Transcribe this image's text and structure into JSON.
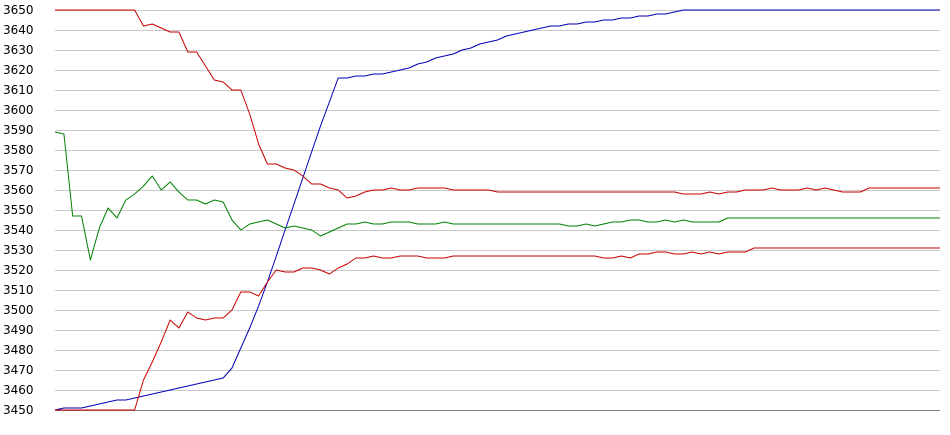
{
  "chart_data": {
    "type": "line",
    "title": "",
    "xlabel": "",
    "ylabel": "",
    "ylim": [
      3450,
      3650
    ],
    "yticks": [
      3450,
      3460,
      3470,
      3480,
      3490,
      3500,
      3510,
      3520,
      3530,
      3540,
      3550,
      3560,
      3570,
      3580,
      3590,
      3600,
      3610,
      3620,
      3630,
      3640,
      3650
    ],
    "xlim": [
      0,
      100
    ],
    "grid": true,
    "legend": "none",
    "series": [
      {
        "color": "#0000b4",
        "x": [
          0,
          1,
          2,
          3,
          4,
          5,
          6,
          7,
          8,
          9,
          10,
          11,
          12,
          13,
          14,
          15,
          16,
          17,
          18,
          19,
          20,
          21,
          22,
          23,
          24,
          25,
          26,
          27,
          28,
          29,
          30,
          31,
          32,
          33,
          34,
          35,
          36,
          37,
          38,
          39,
          40,
          41,
          42,
          43,
          44,
          45,
          46,
          47,
          48,
          49,
          50,
          51,
          52,
          53,
          54,
          55,
          56,
          57,
          58,
          59,
          60,
          61,
          62,
          63,
          64,
          65,
          66,
          67,
          68,
          69,
          70,
          71,
          72,
          73,
          74,
          75,
          76,
          77,
          78,
          79,
          80,
          81,
          82,
          83,
          84,
          85,
          86,
          87,
          88,
          89,
          90,
          91,
          92,
          93,
          94,
          95,
          96,
          97,
          98,
          99,
          100
        ],
        "values": [
          3450,
          3451,
          3451,
          3451,
          3452,
          3453,
          3454,
          3455,
          3455,
          3456,
          3457,
          3458,
          3459,
          3460,
          3461,
          3462,
          3463,
          3464,
          3465,
          3466,
          3471,
          3481,
          3491,
          3502,
          3514,
          3527,
          3540,
          3553,
          3566,
          3579,
          3592,
          3604,
          3616,
          3616,
          3617,
          3617,
          3618,
          3618,
          3619,
          3620,
          3621,
          3623,
          3624,
          3626,
          3627,
          3628,
          3630,
          3631,
          3633,
          3634,
          3635,
          3637,
          3638,
          3639,
          3640,
          3641,
          3642,
          3642,
          3643,
          3643,
          3644,
          3644,
          3645,
          3645,
          3646,
          3646,
          3647,
          3647,
          3648,
          3648,
          3649,
          3650,
          3650,
          3650,
          3650,
          3650,
          3650,
          3650,
          3650,
          3650,
          3650,
          3650,
          3650,
          3650,
          3650,
          3650,
          3650,
          3650,
          3650,
          3650,
          3650,
          3650,
          3650,
          3650,
          3650,
          3650,
          3650,
          3650,
          3650,
          3650,
          3650
        ]
      },
      {
        "color": "#c80000",
        "x": [
          0,
          1,
          2,
          3,
          4,
          5,
          6,
          7,
          8,
          9,
          10,
          11,
          12,
          13,
          14,
          15,
          16,
          17,
          18,
          19,
          20,
          21,
          22,
          23,
          24,
          25,
          26,
          27,
          28,
          29,
          30,
          31,
          32,
          33,
          34,
          35,
          36,
          37,
          38,
          39,
          40,
          41,
          42,
          43,
          44,
          45,
          46,
          47,
          48,
          49,
          50,
          51,
          52,
          53,
          54,
          55,
          56,
          57,
          58,
          59,
          60,
          61,
          62,
          63,
          64,
          65,
          66,
          67,
          68,
          69,
          70,
          71,
          72,
          73,
          74,
          75,
          76,
          77,
          78,
          79,
          80,
          81,
          82,
          83,
          84,
          85,
          86,
          87,
          88,
          89,
          90,
          91,
          92,
          93,
          94,
          95,
          96,
          97,
          98,
          99,
          100
        ],
        "values": [
          3650,
          3650,
          3650,
          3650,
          3650,
          3650,
          3650,
          3650,
          3650,
          3650,
          3642,
          3643,
          3641,
          3639,
          3639,
          3629,
          3629,
          3622,
          3615,
          3614,
          3610,
          3610,
          3598,
          3583,
          3573,
          3573,
          3571,
          3570,
          3567,
          3563,
          3563,
          3561,
          3560,
          3556,
          3557,
          3559,
          3560,
          3560,
          3561,
          3560,
          3560,
          3561,
          3561,
          3561,
          3561,
          3560,
          3560,
          3560,
          3560,
          3560,
          3559,
          3559,
          3559,
          3559,
          3559,
          3559,
          3559,
          3559,
          3559,
          3559,
          3559,
          3559,
          3559,
          3559,
          3559,
          3559,
          3559,
          3559,
          3559,
          3559,
          3559,
          3558,
          3558,
          3558,
          3559,
          3558,
          3559,
          3559,
          3560,
          3560,
          3560,
          3561,
          3560,
          3560,
          3560,
          3561,
          3560,
          3561,
          3560,
          3559,
          3559,
          3559,
          3561,
          3561,
          3561,
          3561,
          3561,
          3561,
          3561,
          3561,
          3561
        ]
      },
      {
        "color": "#008000",
        "x": [
          0,
          1,
          2,
          3,
          4,
          5,
          6,
          7,
          8,
          9,
          10,
          11,
          12,
          13,
          14,
          15,
          16,
          17,
          18,
          19,
          20,
          21,
          22,
          23,
          24,
          25,
          26,
          27,
          28,
          29,
          30,
          31,
          32,
          33,
          34,
          35,
          36,
          37,
          38,
          39,
          40,
          41,
          42,
          43,
          44,
          45,
          46,
          47,
          48,
          49,
          50,
          51,
          52,
          53,
          54,
          55,
          56,
          57,
          58,
          59,
          60,
          61,
          62,
          63,
          64,
          65,
          66,
          67,
          68,
          69,
          70,
          71,
          72,
          73,
          74,
          75,
          76,
          77,
          78,
          79,
          80,
          81,
          82,
          83,
          84,
          85,
          86,
          87,
          88,
          89,
          90,
          91,
          92,
          93,
          94,
          95,
          96,
          97,
          98,
          99,
          100
        ],
        "values": [
          3589,
          3588,
          3547,
          3547,
          3525,
          3541,
          3551,
          3546,
          3555,
          3558,
          3562,
          3567,
          3560,
          3564,
          3559,
          3555,
          3555,
          3553,
          3555,
          3554,
          3545,
          3540,
          3543,
          3544,
          3545,
          3543,
          3541,
          3542,
          3541,
          3540,
          3537,
          3539,
          3541,
          3543,
          3543,
          3544,
          3543,
          3543,
          3544,
          3544,
          3544,
          3543,
          3543,
          3543,
          3544,
          3543,
          3543,
          3543,
          3543,
          3543,
          3543,
          3543,
          3543,
          3543,
          3543,
          3543,
          3543,
          3543,
          3542,
          3542,
          3543,
          3542,
          3543,
          3544,
          3544,
          3545,
          3545,
          3544,
          3544,
          3545,
          3544,
          3545,
          3544,
          3544,
          3544,
          3544,
          3546,
          3546,
          3546,
          3546,
          3546,
          3546,
          3546,
          3546,
          3546,
          3546,
          3546,
          3546,
          3546,
          3546,
          3546,
          3546,
          3546,
          3546,
          3546,
          3546,
          3546,
          3546,
          3546,
          3546,
          3546
        ]
      },
      {
        "color": "#c80000",
        "x": [
          0,
          1,
          2,
          3,
          4,
          5,
          6,
          7,
          8,
          9,
          10,
          11,
          12,
          13,
          14,
          15,
          16,
          17,
          18,
          19,
          20,
          21,
          22,
          23,
          24,
          25,
          26,
          27,
          28,
          29,
          30,
          31,
          32,
          33,
          34,
          35,
          36,
          37,
          38,
          39,
          40,
          41,
          42,
          43,
          44,
          45,
          46,
          47,
          48,
          49,
          50,
          51,
          52,
          53,
          54,
          55,
          56,
          57,
          58,
          59,
          60,
          61,
          62,
          63,
          64,
          65,
          66,
          67,
          68,
          69,
          70,
          71,
          72,
          73,
          74,
          75,
          76,
          77,
          78,
          79,
          80,
          81,
          82,
          83,
          84,
          85,
          86,
          87,
          88,
          89,
          90,
          91,
          92,
          93,
          94,
          95,
          96,
          97,
          98,
          99,
          100
        ],
        "values": [
          3450,
          3450,
          3450,
          3450,
          3450,
          3450,
          3450,
          3450,
          3450,
          3450,
          3465,
          3474,
          3484,
          3495,
          3491,
          3499,
          3496,
          3495,
          3496,
          3496,
          3500,
          3509,
          3509,
          3507,
          3514,
          3520,
          3519,
          3519,
          3521,
          3521,
          3520,
          3518,
          3521,
          3523,
          3526,
          3526,
          3527,
          3526,
          3526,
          3527,
          3527,
          3527,
          3526,
          3526,
          3526,
          3527,
          3527,
          3527,
          3527,
          3527,
          3527,
          3527,
          3527,
          3527,
          3527,
          3527,
          3527,
          3527,
          3527,
          3527,
          3527,
          3527,
          3526,
          3526,
          3527,
          3526,
          3528,
          3528,
          3529,
          3529,
          3528,
          3528,
          3529,
          3528,
          3529,
          3528,
          3529,
          3529,
          3529,
          3531,
          3531,
          3531,
          3531,
          3531,
          3531,
          3531,
          3531,
          3531,
          3531,
          3531,
          3531,
          3531,
          3531,
          3531,
          3531,
          3531,
          3531,
          3531,
          3531,
          3531,
          3531
        ]
      }
    ]
  }
}
